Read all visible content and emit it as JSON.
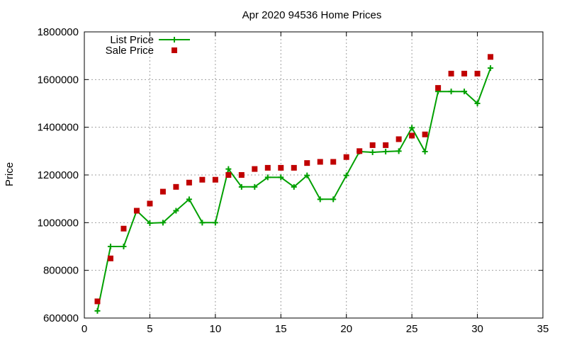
{
  "chart_data": {
    "type": "line",
    "title": "Apr 2020 94536 Home Prices",
    "xlabel": "",
    "ylabel": "Price",
    "xlim": [
      0,
      35
    ],
    "ylim": [
      600000,
      1800000
    ],
    "xticks": [
      0,
      5,
      10,
      15,
      20,
      25,
      30,
      35
    ],
    "yticks": [
      600000,
      800000,
      1000000,
      1200000,
      1400000,
      1600000,
      1800000
    ],
    "grid": true,
    "legend_position": "top-left",
    "series": [
      {
        "name": "List Price",
        "style": "line-plus",
        "color": "#00a000",
        "x": [
          1,
          2,
          3,
          4,
          5,
          6,
          7,
          8,
          9,
          10,
          11,
          12,
          13,
          14,
          15,
          16,
          17,
          18,
          19,
          20,
          21,
          22,
          23,
          24,
          25,
          26,
          27,
          28,
          29,
          30,
          31
        ],
        "values": [
          630000,
          900000,
          900000,
          1050000,
          998000,
          1000000,
          1050000,
          1098000,
          1000000,
          1000000,
          1225000,
          1150000,
          1150000,
          1190000,
          1190000,
          1150000,
          1198000,
          1098000,
          1098000,
          1198000,
          1298000,
          1295000,
          1298000,
          1300000,
          1398000,
          1298000,
          1550000,
          1550000,
          1550000,
          1500000,
          1648000
        ]
      },
      {
        "name": "Sale Price",
        "style": "square",
        "color": "#c00000",
        "x": [
          1,
          2,
          3,
          4,
          5,
          6,
          7,
          8,
          9,
          10,
          11,
          12,
          13,
          14,
          15,
          16,
          17,
          18,
          19,
          20,
          21,
          22,
          23,
          24,
          25,
          26,
          27,
          28,
          29,
          30,
          31
        ],
        "values": [
          670000,
          850000,
          975000,
          1050000,
          1080000,
          1130000,
          1150000,
          1168000,
          1180000,
          1180000,
          1200000,
          1200000,
          1225000,
          1230000,
          1230000,
          1230000,
          1250000,
          1255000,
          1255000,
          1275000,
          1300000,
          1325000,
          1325000,
          1350000,
          1365000,
          1370000,
          1565000,
          1625000,
          1625000,
          1625000,
          1695000
        ]
      }
    ]
  }
}
